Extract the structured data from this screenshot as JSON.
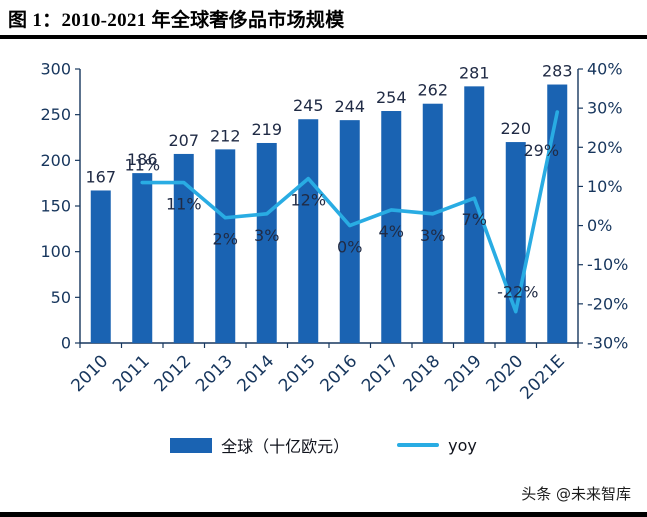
{
  "title": "图 1：2010-2021 年全球奢侈品市场规模",
  "watermark": "头条 @未来智库",
  "colors": {
    "bar": "#1A63B2",
    "line": "#29ACE3",
    "axis_text": "#17365D",
    "label_text": "#202B45",
    "axis_line": "#17375E",
    "title_rule": "#000000"
  },
  "chart_data": {
    "type": "combo",
    "title": "2010-2021 年全球奢侈品市场规模",
    "categories": [
      "2010",
      "2011",
      "2012",
      "2013",
      "2014",
      "2015",
      "2016",
      "2017",
      "2018",
      "2019",
      "2020",
      "2021E"
    ],
    "series": [
      {
        "name": "全球（十亿欧元）",
        "type": "bar",
        "axis": "left",
        "values": [
          167,
          186,
          207,
          212,
          219,
          245,
          244,
          254,
          262,
          281,
          220,
          283
        ]
      },
      {
        "name": "yoy",
        "type": "line",
        "axis": "right",
        "unit": "%",
        "values": [
          null,
          11,
          11,
          2,
          3,
          12,
          0,
          4,
          3,
          7,
          -22,
          29
        ]
      }
    ],
    "left_axis": {
      "min": 0,
      "max": 300,
      "step": 50,
      "tick_labels": [
        "0",
        "50",
        "100",
        "150",
        "200",
        "250",
        "300"
      ]
    },
    "right_axis": {
      "min": -30,
      "max": 40,
      "step": 10,
      "tick_labels": [
        "-30%",
        "-20%",
        "-10%",
        "0%",
        "10%",
        "20%",
        "30%",
        "40%"
      ]
    },
    "legend": [
      "全球（十亿欧元）",
      "yoy"
    ],
    "legend_position": "bottom",
    "grid": false
  }
}
